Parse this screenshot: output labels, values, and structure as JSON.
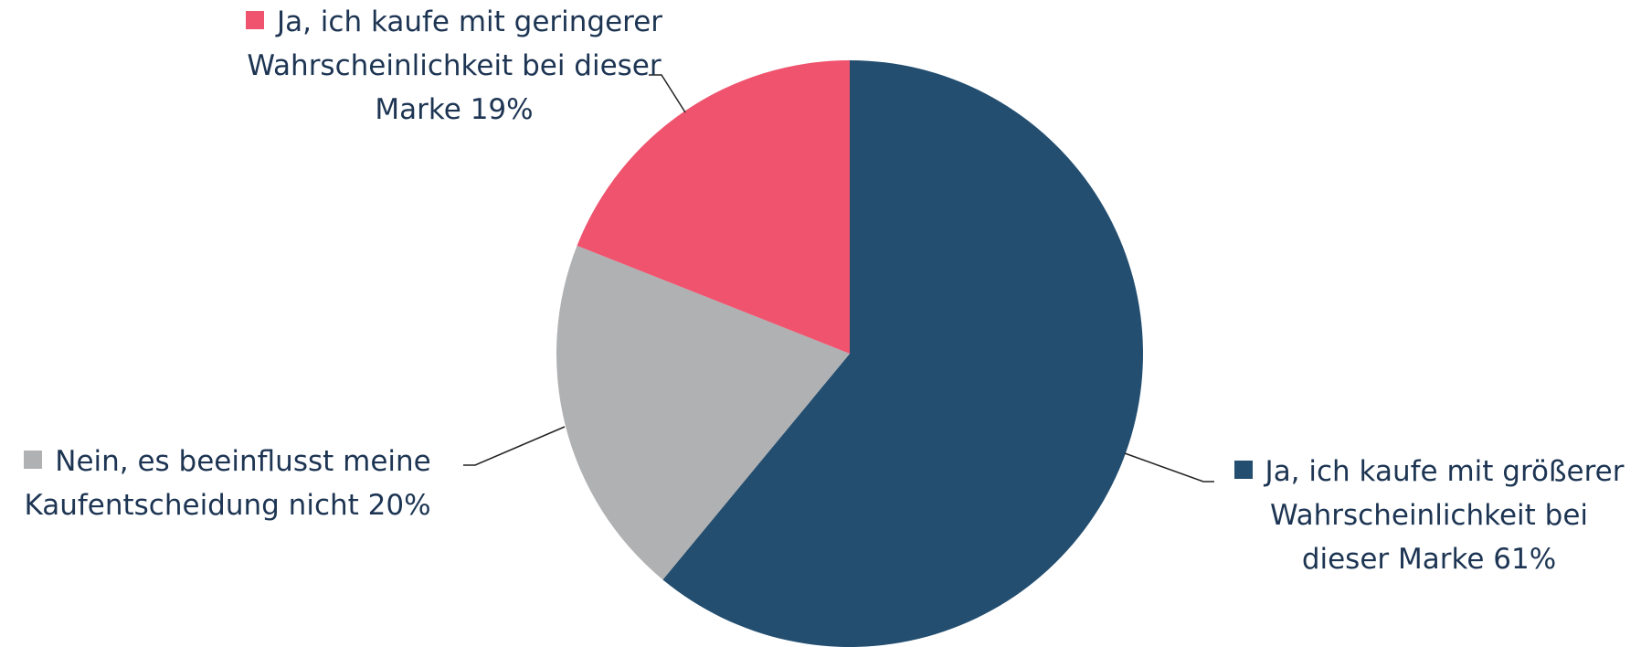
{
  "chart_data": {
    "type": "pie",
    "categories": [
      "Ja, ich kaufe mit größerer Wahrscheinlichkeit bei dieser Marke",
      "Nein, es beeinflusst meine Kaufentscheidung nicht",
      "Ja, ich kaufe mit geringerer Wahrscheinlichkeit bei dieser Marke"
    ],
    "values": [
      61,
      20,
      19
    ],
    "value_labels": [
      "61%",
      "20%",
      "19%"
    ],
    "colors": [
      "#234e70",
      "#b0b1b3",
      "#ef536e"
    ]
  }
}
